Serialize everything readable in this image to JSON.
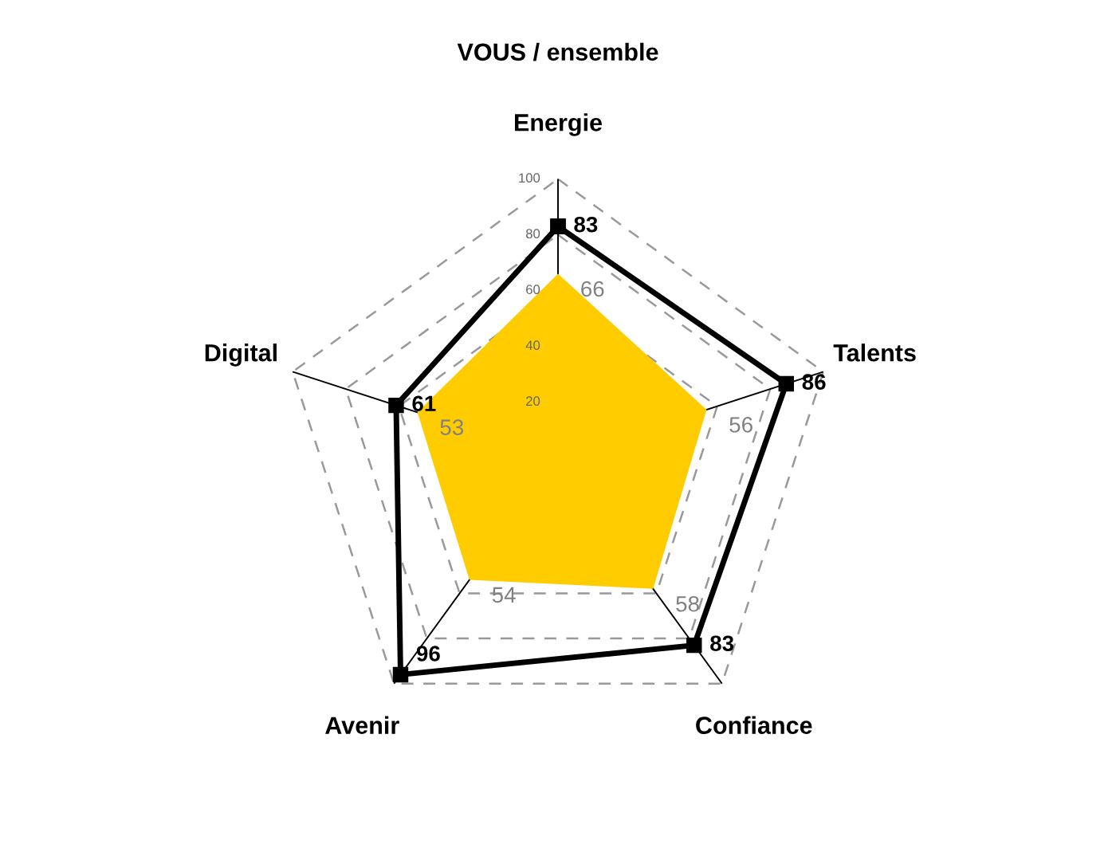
{
  "chart_data": {
    "type": "radar",
    "title": "VOUS / ensemble",
    "categories": [
      "Energie",
      "Talents",
      "Confiance",
      "Avenir",
      "Digital"
    ],
    "series": [
      {
        "color": "#ffcc00",
        "marker": "none",
        "values": [
          66,
          56,
          58,
          54,
          53
        ]
      },
      {
        "color": "#000000",
        "marker": "square",
        "values": [
          83,
          86,
          83,
          96,
          61
        ]
      }
    ],
    "ylim": [
      0,
      100
    ],
    "yticks": [
      20,
      40,
      60,
      80,
      100
    ],
    "grid": true,
    "data_labels": true,
    "line_style": "solid"
  }
}
